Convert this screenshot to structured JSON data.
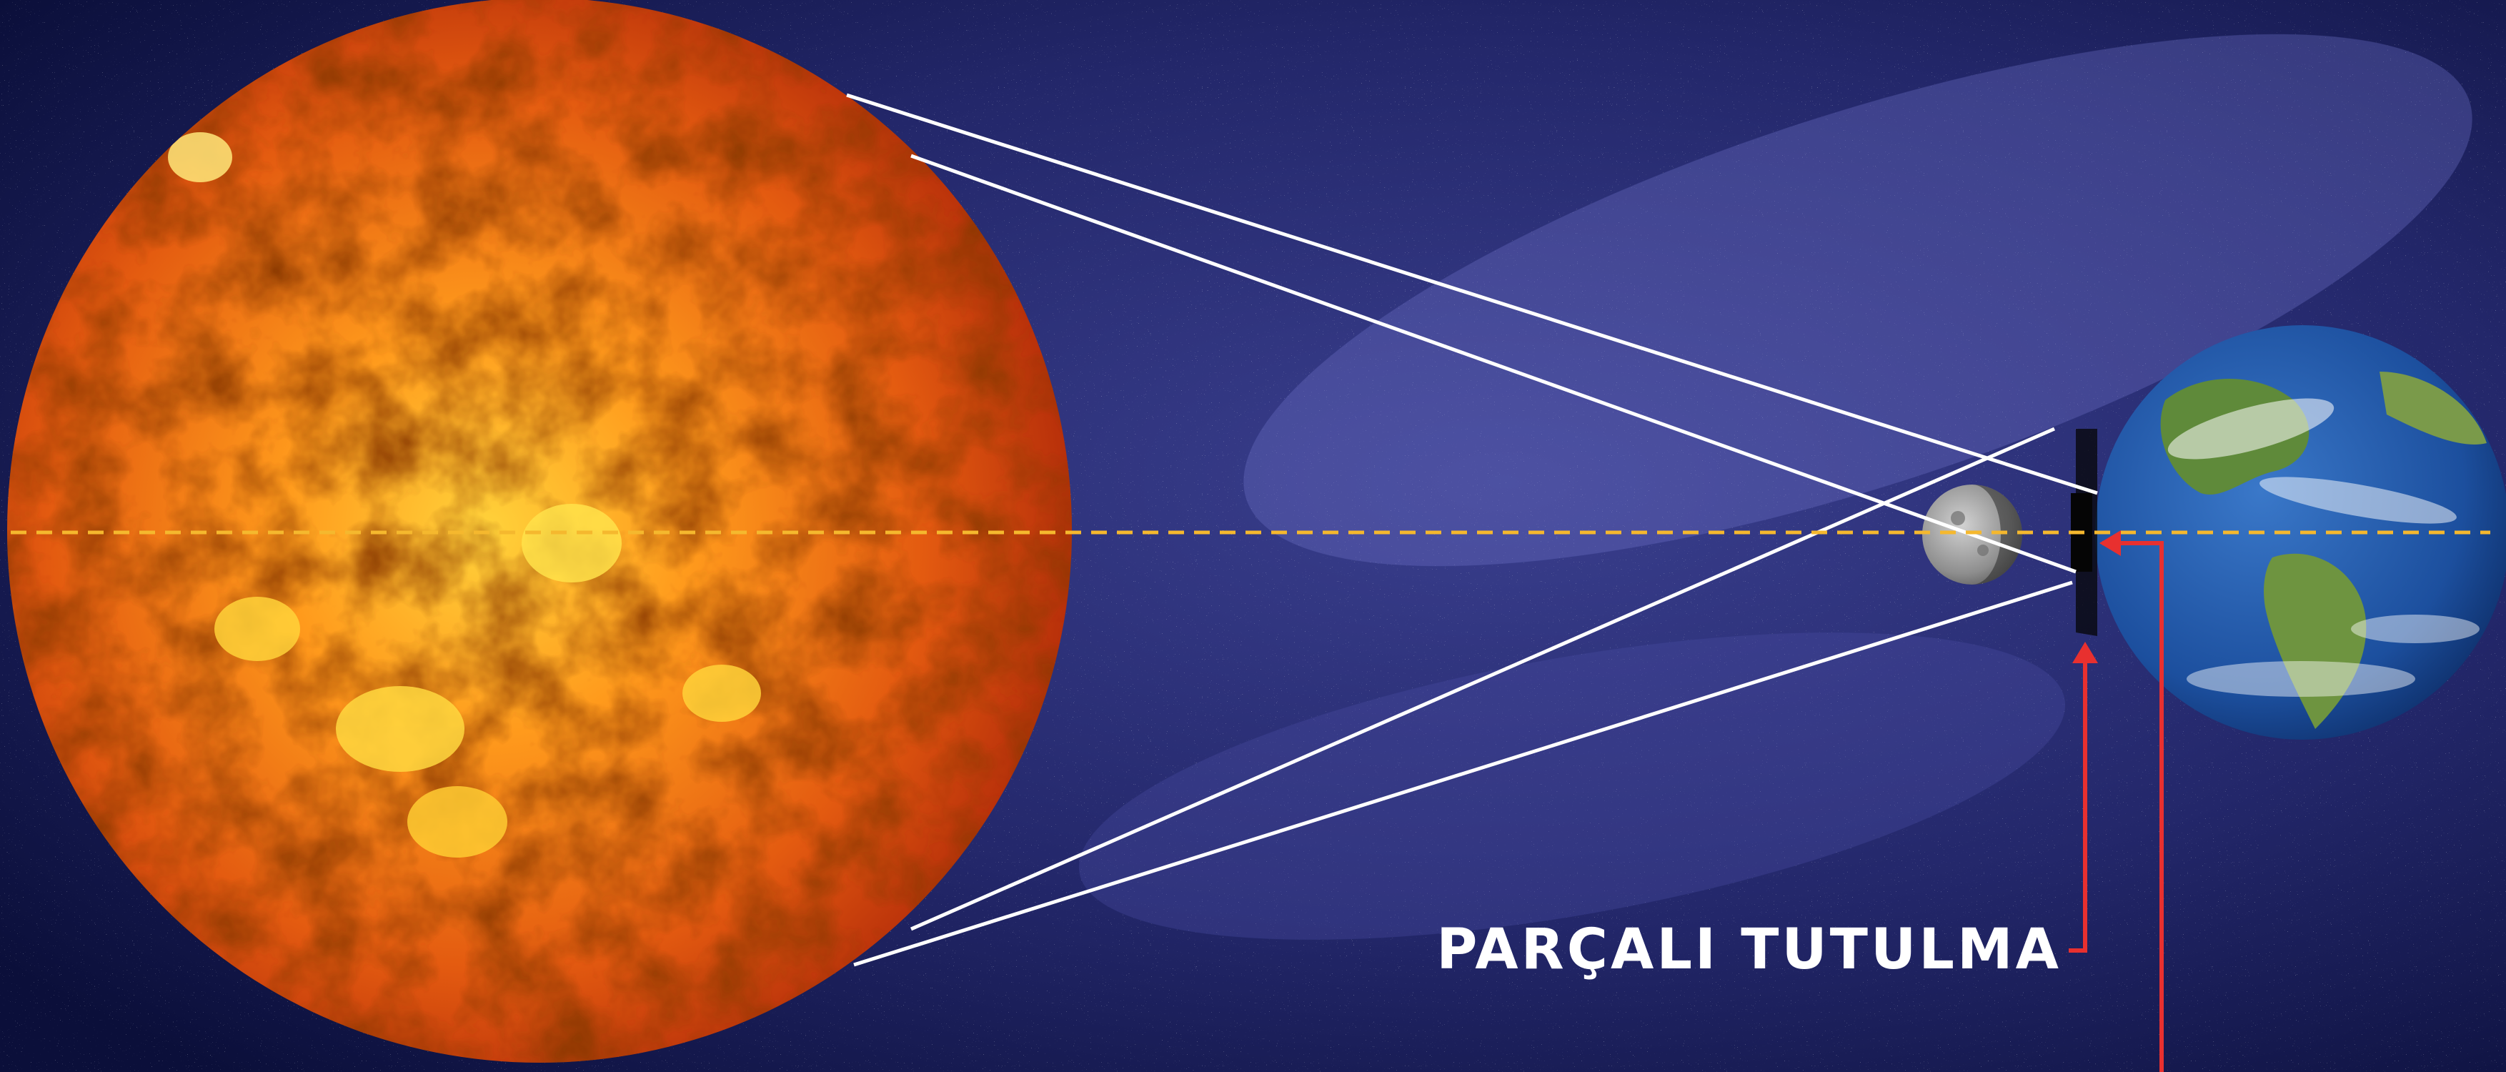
{
  "diagram": {
    "labels": {
      "partial_eclipse": "PARÇALI TUTULMA"
    },
    "colors": {
      "sky_dark": "#0b0f3a",
      "sky_mid": "#2a2f7a",
      "sun_core": "#ffb21e",
      "sun_edge": "#c2370a",
      "ray_line": "#ffffff",
      "axis_line": "#f5b82e",
      "pointer_line": "#e8302f",
      "label_text": "#ffffff",
      "earth_ocean": "#1c4f9e",
      "earth_land": "#5f8a3a",
      "moon_gray": "#9a9a9a",
      "shadow_black": "#050505"
    },
    "icons": {
      "sun": "sun-icon",
      "moon": "moon-icon",
      "earth": "earth-icon"
    }
  }
}
